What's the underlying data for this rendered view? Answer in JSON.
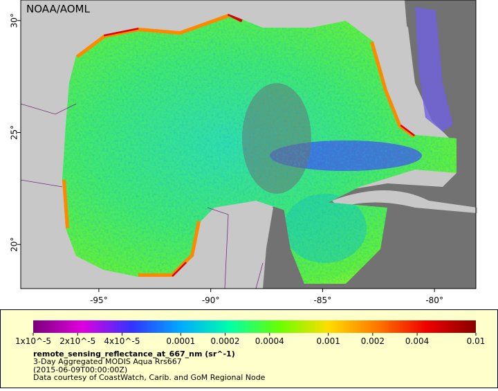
{
  "map": {
    "credit": "NOAA/AOML",
    "xlim": [
      -98.49,
      -78.15
    ],
    "ylim": [
      18.03,
      30.92
    ],
    "xticks": [
      {
        "value": -95,
        "label": "-95°"
      },
      {
        "value": -90,
        "label": "-90°"
      },
      {
        "value": -85,
        "label": "-85°"
      },
      {
        "value": -80,
        "label": "-80°"
      }
    ],
    "yticks": [
      {
        "value": 20,
        "label": "20°"
      },
      {
        "value": 25,
        "label": "25°"
      },
      {
        "value": 30,
        "label": "30°"
      }
    ]
  },
  "colorbar": {
    "log": true,
    "range": [
      1e-05,
      0.01
    ],
    "colors": [
      "#7b007b",
      "#e000e0",
      "#3333ff",
      "#00aaff",
      "#00ffaa",
      "#66ff00",
      "#ffdd00",
      "#ff7700",
      "#ee0000",
      "#880000"
    ],
    "ticks": [
      {
        "value": 1e-05,
        "label": "1x10^-5"
      },
      {
        "value": 2e-05,
        "label": "2x10^-5"
      },
      {
        "value": 4e-05,
        "label": "4x10^-5"
      },
      0.0001,
      0.0002,
      0.0004,
      0.001,
      0.002,
      0.004,
      0.01
    ]
  },
  "caption": {
    "variable": "remote_sensing_reflectance_at_667_nm (sr^-1)",
    "product": "3-Day Aggregated MODIS Aqua Rrs667",
    "time": "(2015-06-09T00:00:00Z)",
    "source": "Data courtesy of CoastWatch, Carib. and GoM Regional Node"
  }
}
